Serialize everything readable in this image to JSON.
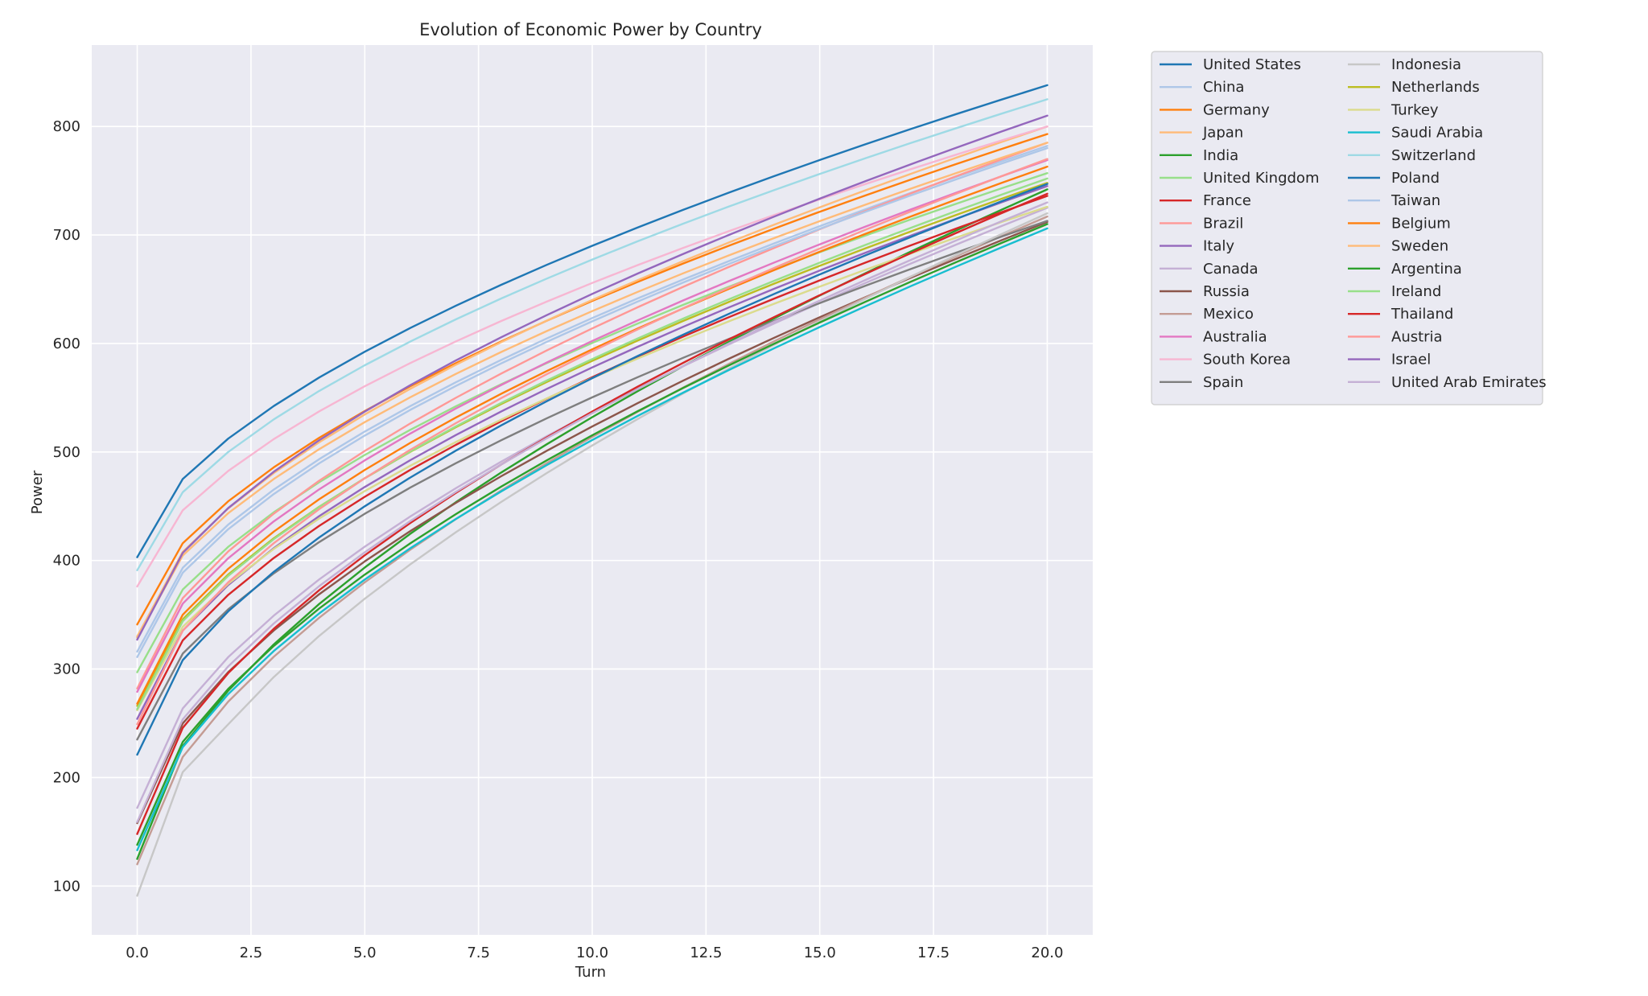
{
  "chart_data": {
    "type": "line",
    "title": "Evolution of Economic Power by Country",
    "xlabel": "Turn",
    "ylabel": "Power",
    "xlim": [
      -1,
      21
    ],
    "ylim": [
      55,
      875
    ],
    "x_ticks": [
      0.0,
      2.5,
      5.0,
      7.5,
      10.0,
      12.5,
      15.0,
      17.5,
      20.0
    ],
    "x_tick_labels": [
      "0.0",
      "2.5",
      "5.0",
      "7.5",
      "10.0",
      "12.5",
      "15.0",
      "17.5",
      "20.0"
    ],
    "y_ticks": [
      100,
      200,
      300,
      400,
      500,
      600,
      700,
      800
    ],
    "y_tick_labels": [
      "100",
      "200",
      "300",
      "400",
      "500",
      "600",
      "700",
      "800"
    ],
    "grid": true,
    "legend_position": "outside-right-top",
    "legend_columns": 2,
    "x": [
      0,
      1,
      2,
      3,
      4,
      5,
      6,
      7,
      8,
      9,
      10,
      11,
      12,
      13,
      14,
      15,
      16,
      17,
      18,
      19,
      20
    ],
    "series": [
      {
        "name": "United States",
        "color": "#1f77b4",
        "start": 403,
        "end": 838
      },
      {
        "name": "China",
        "color": "#aec7e8",
        "start": 316,
        "end": 782
      },
      {
        "name": "Germany",
        "color": "#ff7f0e",
        "start": 341,
        "end": 793
      },
      {
        "name": "Japan",
        "color": "#ffbb78",
        "start": 330,
        "end": 800
      },
      {
        "name": "India",
        "color": "#2ca02c",
        "start": 125,
        "end": 742
      },
      {
        "name": "United Kingdom",
        "color": "#98df8a",
        "start": 297,
        "end": 757
      },
      {
        "name": "France",
        "color": "#d62728",
        "start": 245,
        "end": 736
      },
      {
        "name": "Brazil",
        "color": "#ff9896",
        "start": 282,
        "end": 785
      },
      {
        "name": "Italy",
        "color": "#9467bd",
        "start": 254,
        "end": 745
      },
      {
        "name": "Canada",
        "color": "#c5b0d5",
        "start": 172,
        "end": 725
      },
      {
        "name": "Russia",
        "color": "#8c564b",
        "start": 158,
        "end": 712
      },
      {
        "name": "Mexico",
        "color": "#c49c94",
        "start": 120,
        "end": 717
      },
      {
        "name": "Australia",
        "color": "#e377c2",
        "start": 279,
        "end": 769
      },
      {
        "name": "South Korea",
        "color": "#f7b6d2",
        "start": 376,
        "end": 800
      },
      {
        "name": "Spain",
        "color": "#7f7f7f",
        "start": 235,
        "end": 713
      },
      {
        "name": "Indonesia",
        "color": "#c7c7c7",
        "start": 91,
        "end": 720
      },
      {
        "name": "Netherlands",
        "color": "#bcbd22",
        "start": 266,
        "end": 748
      },
      {
        "name": "Turkey",
        "color": "#dbdb8d",
        "start": 262,
        "end": 726
      },
      {
        "name": "Saudi Arabia",
        "color": "#17becf",
        "start": 133,
        "end": 706
      },
      {
        "name": "Switzerland",
        "color": "#9edae5",
        "start": 391,
        "end": 825
      },
      {
        "name": "Poland",
        "color": "#1f77b4",
        "start": 221,
        "end": 747
      },
      {
        "name": "Taiwan",
        "color": "#aec7e8",
        "start": 311,
        "end": 780
      },
      {
        "name": "Belgium",
        "color": "#ff7f0e",
        "start": 268,
        "end": 763
      },
      {
        "name": "Sweden",
        "color": "#ffbb78",
        "start": 329,
        "end": 785
      },
      {
        "name": "Argentina",
        "color": "#2ca02c",
        "start": 138,
        "end": 710
      },
      {
        "name": "Ireland",
        "color": "#98df8a",
        "start": 263,
        "end": 752
      },
      {
        "name": "Thailand",
        "color": "#d62728",
        "start": 148,
        "end": 738
      },
      {
        "name": "Austria",
        "color": "#ff9896",
        "start": 249,
        "end": 770
      },
      {
        "name": "Israel",
        "color": "#9467bd",
        "start": 327,
        "end": 810
      },
      {
        "name": "United Arab Emirates",
        "color": "#c5b0d5",
        "start": 159,
        "end": 730
      }
    ]
  }
}
